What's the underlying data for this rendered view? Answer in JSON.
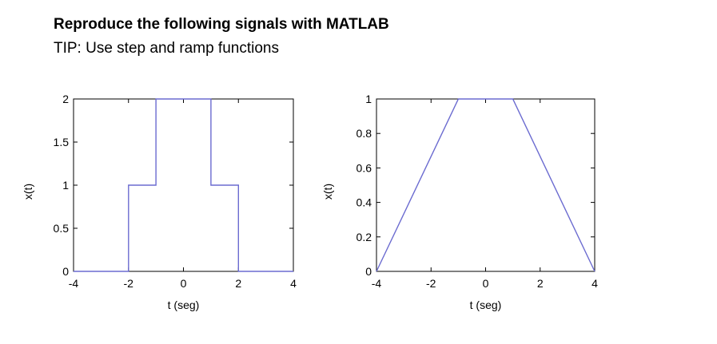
{
  "header": {
    "title": "Reproduce the following signals with MATLAB",
    "tip": "TIP: Use step and ramp functions"
  },
  "colors": {
    "signal": "#6b6bd0",
    "axes": "#000000"
  },
  "chart_data": [
    {
      "type": "line",
      "xlabel": "t (seg)",
      "ylabel": "x(t)",
      "xlim": [
        -4,
        4
      ],
      "ylim": [
        0,
        2
      ],
      "xticks": [
        -4,
        -2,
        0,
        2,
        4
      ],
      "yticks": [
        0,
        0.5,
        1,
        1.5,
        2
      ],
      "xtick_labels": [
        "-4",
        "-2",
        "0",
        "2",
        "4"
      ],
      "ytick_labels": [
        "0",
        "0.5",
        "1",
        "1.5",
        "2"
      ],
      "series": [
        {
          "x": [
            -4,
            -2,
            -2,
            -1,
            -1,
            1,
            1,
            2,
            2,
            4
          ],
          "y": [
            0,
            0,
            1,
            1,
            2,
            2,
            1,
            1,
            0,
            0
          ]
        }
      ],
      "grid": false
    },
    {
      "type": "line",
      "xlabel": "t (seg)",
      "ylabel": "x(t)",
      "xlim": [
        -4,
        4
      ],
      "ylim": [
        0,
        1
      ],
      "xticks": [
        -4,
        -2,
        0,
        2,
        4
      ],
      "yticks": [
        0,
        0.2,
        0.4,
        0.6,
        0.8,
        1
      ],
      "xtick_labels": [
        "-4",
        "-2",
        "0",
        "2",
        "4"
      ],
      "ytick_labels": [
        "0",
        "0.2",
        "0.4",
        "0.6",
        "0.8",
        "1"
      ],
      "series": [
        {
          "x": [
            -4,
            -1,
            1,
            4
          ],
          "y": [
            0,
            1,
            1,
            0
          ]
        }
      ],
      "grid": false
    }
  ]
}
